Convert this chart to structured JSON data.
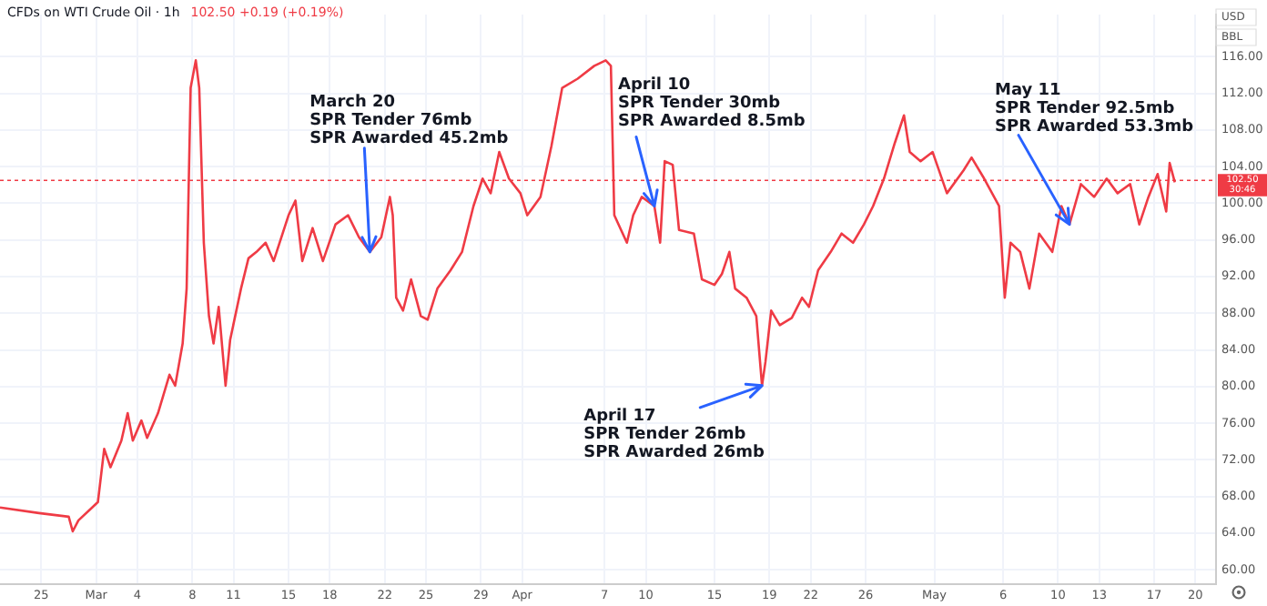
{
  "chart_data": {
    "type": "line",
    "title": "CFDs on WTI Crude Oil · 1h",
    "subtitle": "102.50 +0.19 (+0.19%)",
    "series": [
      {
        "color": "#ef3b45",
        "x": [
          "--02-22T00:00",
          "--02-24T20:00",
          "--02-27T00:00",
          "--02-27T07:00",
          "--02-27T17:00",
          "--02-28T17:00",
          "--03-01T03:00",
          "--03-01T14:00",
          "--03-02T01:00",
          "--03-02T20:00",
          "--03-03T07:00",
          "--03-03T16:00",
          "--03-04T07:00",
          "--03-04T17:00",
          "--03-05T12:00",
          "--03-06T08:00",
          "--03-06T18:00",
          "--03-07T07:00",
          "--03-07T14:00",
          "--03-07T21:00",
          "--03-08T06:00",
          "--03-08T12:00",
          "--03-08T20:00",
          "--03-09T05:00",
          "--03-09T13:00",
          "--03-09T22:00",
          "--03-10T10:00",
          "--03-10T18:00",
          "--03-11T13:00",
          "--03-12T02:00",
          "--03-12T16:00",
          "--03-13T08:00",
          "--03-13T22:00",
          "--03-15T00:00",
          "--03-15T12:00",
          "--03-16T00:00",
          "--03-16T18:00",
          "--03-17T12:00",
          "--03-18T10:00",
          "--03-19T08:00",
          "--03-20T03:00",
          "--03-20T22:00",
          "--03-21T18:00",
          "--03-22T09:00",
          "--03-22T14:00",
          "--03-22T20:00",
          "--03-23T08:00",
          "--03-23T22:00",
          "--03-24T15:00",
          "--03-25T03:00",
          "--03-25T20:00",
          "--03-26T19:00",
          "--03-27T15:00",
          "--03-28T11:00",
          "--03-29T03:00",
          "--03-29T17:00",
          "--03-30T08:00",
          "--03-31T01:00",
          "--03-31T21:00",
          "--04-01T09:00",
          "--04-02T08:00",
          "--04-03T03:00",
          "--04-03T22:00",
          "--04-05T01:00",
          "--04-06T06:00",
          "--04-07T02:00",
          "--04-07T11:00",
          "--04-07T17:00",
          "--04-08T15:00",
          "--04-09T02:00",
          "--04-09T17:00",
          "--04-10T15:00",
          "--04-11T01:00",
          "--04-11T09:00",
          "--04-11T23:00",
          "--04-12T10:00",
          "--04-13T12:00",
          "--04-14T02:00",
          "--04-15T00:00",
          "--04-15T13:00",
          "--04-16T02:00",
          "--04-16T12:00",
          "--04-17T08:00",
          "--04-18T01:00",
          "--04-18T11:00",
          "--04-18T17:00",
          "--04-19T03:00",
          "--04-19T18:00",
          "--04-20T15:00",
          "--04-21T09:00",
          "--04-21T21:00",
          "--04-22T13:00",
          "--04-23T11:00",
          "--04-24T06:00",
          "--04-25T02:00",
          "--04-25T21:00",
          "--04-26T13:00",
          "--04-27T08:00",
          "--04-28T03:00",
          "--04-28T19:00",
          "--04-29T05:00",
          "--04-30T00:00",
          "--04-30T21:00",
          "--05-01T22:00",
          "--05-03T03:00",
          "--05-03T17:00",
          "--05-04T15:00",
          "--05-05T17:00",
          "--05-06T03:00",
          "--05-06T13:00",
          "--05-07T06:00",
          "--05-07T22:00",
          "--05-08T15:00",
          "--05-09T14:00",
          "--05-10T06:00",
          "--05-10T20:00",
          "--05-11T16:00",
          "--05-12T15:00",
          "--05-13T13:00",
          "--05-14T08:00",
          "--05-15T06:00",
          "--05-15T22:00",
          "--05-16T14:00",
          "--05-17T06:00",
          "--05-17T21:00",
          "--05-18T03:00",
          "--05-18T12:00"
        ],
        "values": [
          66.8,
          66.2,
          65.8,
          64.2,
          65.4,
          66.8,
          67.4,
          73.2,
          71.2,
          74.1,
          77.1,
          74.1,
          76.3,
          74.4,
          77.1,
          81.3,
          80.1,
          84.7,
          90.7,
          112.6,
          115.6,
          112.6,
          95.7,
          87.7,
          84.7,
          88.7,
          80.1,
          85.1,
          90.7,
          94.0,
          94.7,
          95.7,
          93.7,
          98.7,
          100.3,
          93.7,
          97.3,
          93.7,
          97.7,
          98.7,
          96.3,
          94.7,
          96.3,
          100.7,
          98.7,
          89.7,
          88.3,
          91.7,
          87.7,
          87.3,
          90.7,
          92.7,
          94.7,
          99.7,
          102.7,
          101.1,
          105.6,
          102.7,
          101.1,
          98.7,
          100.7,
          106.2,
          112.6,
          113.6,
          115.0,
          115.6,
          115.0,
          98.7,
          95.7,
          98.7,
          100.7,
          99.7,
          95.7,
          104.6,
          104.2,
          97.1,
          96.7,
          91.7,
          91.1,
          92.3,
          94.7,
          90.7,
          89.7,
          87.7,
          80.1,
          82.7,
          88.3,
          86.7,
          87.5,
          89.7,
          88.7,
          92.7,
          94.7,
          96.7,
          95.7,
          97.7,
          99.7,
          102.7,
          106.6,
          109.6,
          105.6,
          104.6,
          105.6,
          101.1,
          103.6,
          105.0,
          102.7,
          99.7,
          89.7,
          95.7,
          94.7,
          90.7,
          96.7,
          94.7,
          99.7,
          97.7,
          102.1,
          100.7,
          102.7,
          101.1,
          102.1,
          97.7,
          100.7,
          103.2,
          99.1,
          104.4,
          102.3
        ]
      }
    ],
    "xlim": [
      "--02-22T00:00",
      "--05-21T12:00"
    ],
    "xticks": [
      {
        "value": "--02-25",
        "label": "25"
      },
      {
        "value": "--03-01",
        "label": "Mar"
      },
      {
        "value": "--03-04",
        "label": "4"
      },
      {
        "value": "--03-08",
        "label": "8"
      },
      {
        "value": "--03-11",
        "label": "11"
      },
      {
        "value": "--03-15",
        "label": "15"
      },
      {
        "value": "--03-18",
        "label": "18"
      },
      {
        "value": "--03-22",
        "label": "22"
      },
      {
        "value": "--03-25",
        "label": "25"
      },
      {
        "value": "--03-29",
        "label": "29"
      },
      {
        "value": "--04-01",
        "label": "Apr"
      },
      {
        "value": "--04-07",
        "label": "7"
      },
      {
        "value": "--04-10",
        "label": "10"
      },
      {
        "value": "--04-15",
        "label": "15"
      },
      {
        "value": "--04-19",
        "label": "19"
      },
      {
        "value": "--04-22",
        "label": "22"
      },
      {
        "value": "--04-26",
        "label": "26"
      },
      {
        "value": "--05-01",
        "label": "May"
      },
      {
        "value": "--05-06",
        "label": "6"
      },
      {
        "value": "--05-10",
        "label": "10"
      },
      {
        "value": "--05-13",
        "label": "13"
      },
      {
        "value": "--05-17",
        "label": "17"
      },
      {
        "value": "--05-20",
        "label": "20"
      }
    ],
    "ylim": [
      58.4,
      120.6
    ],
    "yticks": [
      {
        "value": 60,
        "label": "60.00"
      },
      {
        "value": 64,
        "label": "64.00"
      },
      {
        "value": 68,
        "label": "68.00"
      },
      {
        "value": 72,
        "label": "72.00"
      },
      {
        "value": 76,
        "label": "76.00"
      },
      {
        "value": 80,
        "label": "80.00"
      },
      {
        "value": 84,
        "label": "84.00"
      },
      {
        "value": 88,
        "label": "88.00"
      },
      {
        "value": 92,
        "label": "92.00"
      },
      {
        "value": 96,
        "label": "96.00"
      },
      {
        "value": 100,
        "label": "100.00"
      },
      {
        "value": 104,
        "label": "104.00"
      },
      {
        "value": 108,
        "label": "108.00"
      },
      {
        "value": 112,
        "label": "112.00"
      },
      {
        "value": 116,
        "label": "116.00"
      }
    ],
    "grid": true,
    "legend": false,
    "marker": "none",
    "line_style": "solid",
    "ref_lines": [
      {
        "axis": "y",
        "value": 102.5,
        "label": "102.50\n30:46",
        "color": "#ef3b45",
        "line_style": "dotted"
      }
    ],
    "annotations": [
      {
        "text": "March 20\nSPR Tender 76mb\nSPR Awarded 45.2mb",
        "x": "--03-20T22:00",
        "y": 94.7
      },
      {
        "text": "April 10\nSPR Tender 30mb\nSPR Awarded 8.5mb",
        "x": "--04-10T15:00",
        "y": 99.7
      },
      {
        "text": "April 17\nSPR Tender 26mb\nSPR Awarded 26mb",
        "x": "--04-18T11:00",
        "y": 80.1
      },
      {
        "text": "May 11\nSPR Tender 92.5mb\nSPR Awarded 53.3mb",
        "x": "--05-10T20:00",
        "y": 97.7
      },
      "USD",
      "BBL"
    ]
  }
}
